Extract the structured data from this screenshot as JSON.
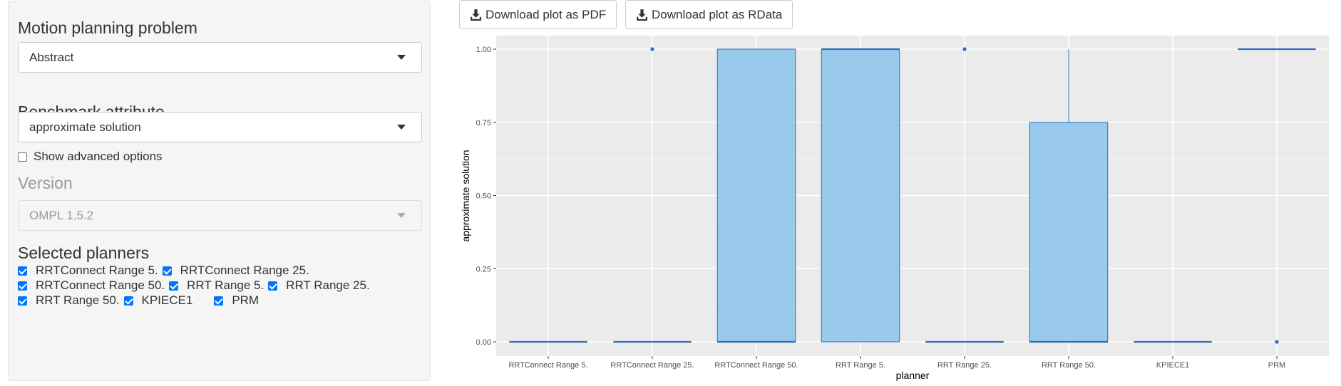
{
  "sidebar": {
    "problem_title": "Motion planning problem",
    "problem_value": "Abstract",
    "attribute_title": "Benchmark attribute",
    "attribute_value": "approximate solution",
    "advanced_label": "Show advanced options",
    "version_title": "Version",
    "version_value": "OMPL 1.5.2",
    "planners_title": "Selected planners",
    "planners": [
      "RRTConnect Range 5.",
      "RRTConnect Range 25.",
      "RRTConnect Range 50.",
      "RRT Range 5.",
      "RRT Range 25.",
      "RRT Range 50.",
      "KPIECE1",
      "PRM"
    ]
  },
  "toolbar": {
    "pdf_label": "Download plot as PDF",
    "rdata_label": "Download plot as RData",
    "icon": "download-icon"
  },
  "colors": {
    "panel": "#ebebeb",
    "box_fill": "#99c9eb",
    "box_stroke": "#2e6fbf"
  },
  "chart_data": {
    "type": "box",
    "xlabel": "planner",
    "ylabel": "approximate solution",
    "ylim": [
      0,
      1
    ],
    "yticks": [
      "0.00",
      "0.25",
      "0.50",
      "0.75",
      "1.00"
    ],
    "categories": [
      "RRTConnect Range 5.",
      "RRTConnect Range 25.",
      "RRTConnect Range 50.",
      "RRT Range 5.",
      "RRT Range 25.",
      "RRT Range 50.",
      "KPIECE1",
      "PRM"
    ],
    "boxes": [
      {
        "q1": 0,
        "median": 0,
        "q3": 0,
        "whisker_low": 0,
        "whisker_high": 0,
        "outliers": []
      },
      {
        "q1": 0,
        "median": 0,
        "q3": 0,
        "whisker_low": 0,
        "whisker_high": 0,
        "outliers": [
          1
        ]
      },
      {
        "q1": 0,
        "median": 0,
        "q3": 1,
        "whisker_low": 0,
        "whisker_high": 1,
        "outliers": []
      },
      {
        "q1": 0,
        "median": 1,
        "q3": 1,
        "whisker_low": 0,
        "whisker_high": 1,
        "outliers": []
      },
      {
        "q1": 0,
        "median": 0,
        "q3": 0,
        "whisker_low": 0,
        "whisker_high": 0,
        "outliers": [
          1
        ]
      },
      {
        "q1": 0,
        "median": 0,
        "q3": 0.75,
        "whisker_low": 0,
        "whisker_high": 1,
        "outliers": []
      },
      {
        "q1": 0,
        "median": 0,
        "q3": 0,
        "whisker_low": 0,
        "whisker_high": 0,
        "outliers": []
      },
      {
        "q1": 1,
        "median": 1,
        "q3": 1,
        "whisker_low": 1,
        "whisker_high": 1,
        "outliers": [
          0
        ]
      }
    ],
    "grid": true,
    "legend": "none"
  }
}
